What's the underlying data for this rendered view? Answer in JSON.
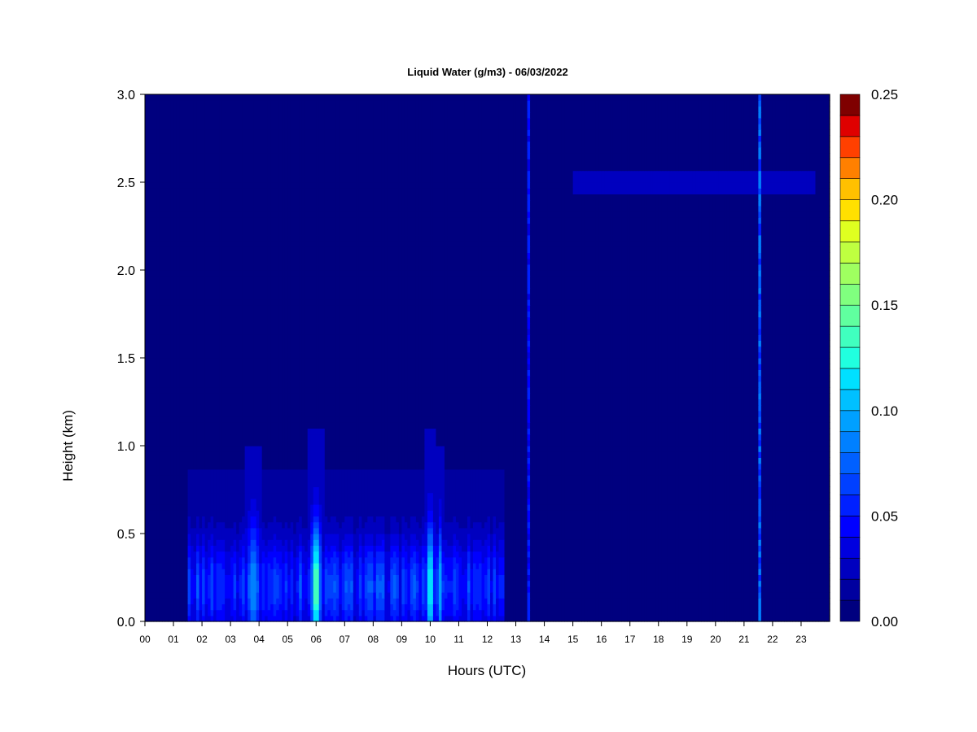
{
  "chart_data": {
    "type": "heatmap",
    "title": "Liquid Water (g/m3) - 06/03/2022",
    "xlabel": "Hours (UTC)",
    "ylabel": "Height (km)",
    "xlim": [
      0,
      24
    ],
    "ylim": [
      0,
      3.0
    ],
    "x_ticks": [
      "00",
      "01",
      "02",
      "03",
      "04",
      "05",
      "06",
      "07",
      "08",
      "09",
      "10",
      "11",
      "12",
      "13",
      "14",
      "15",
      "16",
      "17",
      "18",
      "19",
      "20",
      "21",
      "22",
      "23"
    ],
    "y_ticks": [
      "0.0",
      "0.5",
      "1.0",
      "1.5",
      "2.0",
      "2.5",
      "3.0"
    ],
    "colorbar": {
      "min": 0.0,
      "max": 0.25,
      "levels": 25,
      "tick_values": [
        0.0,
        0.05,
        0.1,
        0.15,
        0.2,
        0.25
      ],
      "tick_labels": [
        "0.00",
        "0.05",
        "0.10",
        "0.15",
        "0.20",
        "0.25"
      ],
      "colors": [
        "#00007f",
        "#00009f",
        "#0000bf",
        "#0000df",
        "#0000ff",
        "#0020ff",
        "#0040ff",
        "#0060ff",
        "#0080ff",
        "#00a0ff",
        "#00c0ff",
        "#00e0ff",
        "#20ffdf",
        "#40ffbf",
        "#60ff9f",
        "#80ff7f",
        "#9fff60",
        "#bfff40",
        "#dfff20",
        "#ffe000",
        "#ffc000",
        "#ff8000",
        "#ff4000",
        "#df0000",
        "#7f0000"
      ]
    },
    "background_value": 0.005,
    "features": [
      {
        "kind": "boundary_layer",
        "x_start": 1.5,
        "x_end": 12.6,
        "y_max": 0.85,
        "peak_value": 0.045
      },
      {
        "kind": "column",
        "x": 6.0,
        "width": 0.25,
        "y_max": 1.1,
        "peak_value": 0.15
      },
      {
        "kind": "column",
        "x": 10.0,
        "width": 0.2,
        "y_max": 1.1,
        "peak_value": 0.13
      },
      {
        "kind": "column",
        "x": 10.35,
        "width": 0.12,
        "y_max": 1.0,
        "peak_value": 0.08
      },
      {
        "kind": "column",
        "x": 3.8,
        "width": 0.35,
        "y_max": 1.0,
        "peak_value": 0.08
      },
      {
        "kind": "line",
        "x": 13.45,
        "y_max": 3.0,
        "peak_value": 0.06
      },
      {
        "kind": "line",
        "x": 21.55,
        "y_max": 3.0,
        "peak_value": 0.09
      },
      {
        "kind": "cloud_layer",
        "x_start": 15.0,
        "x_end": 23.5,
        "y_center": 2.5,
        "thickness": 0.12,
        "peak_value": 0.02
      }
    ]
  }
}
